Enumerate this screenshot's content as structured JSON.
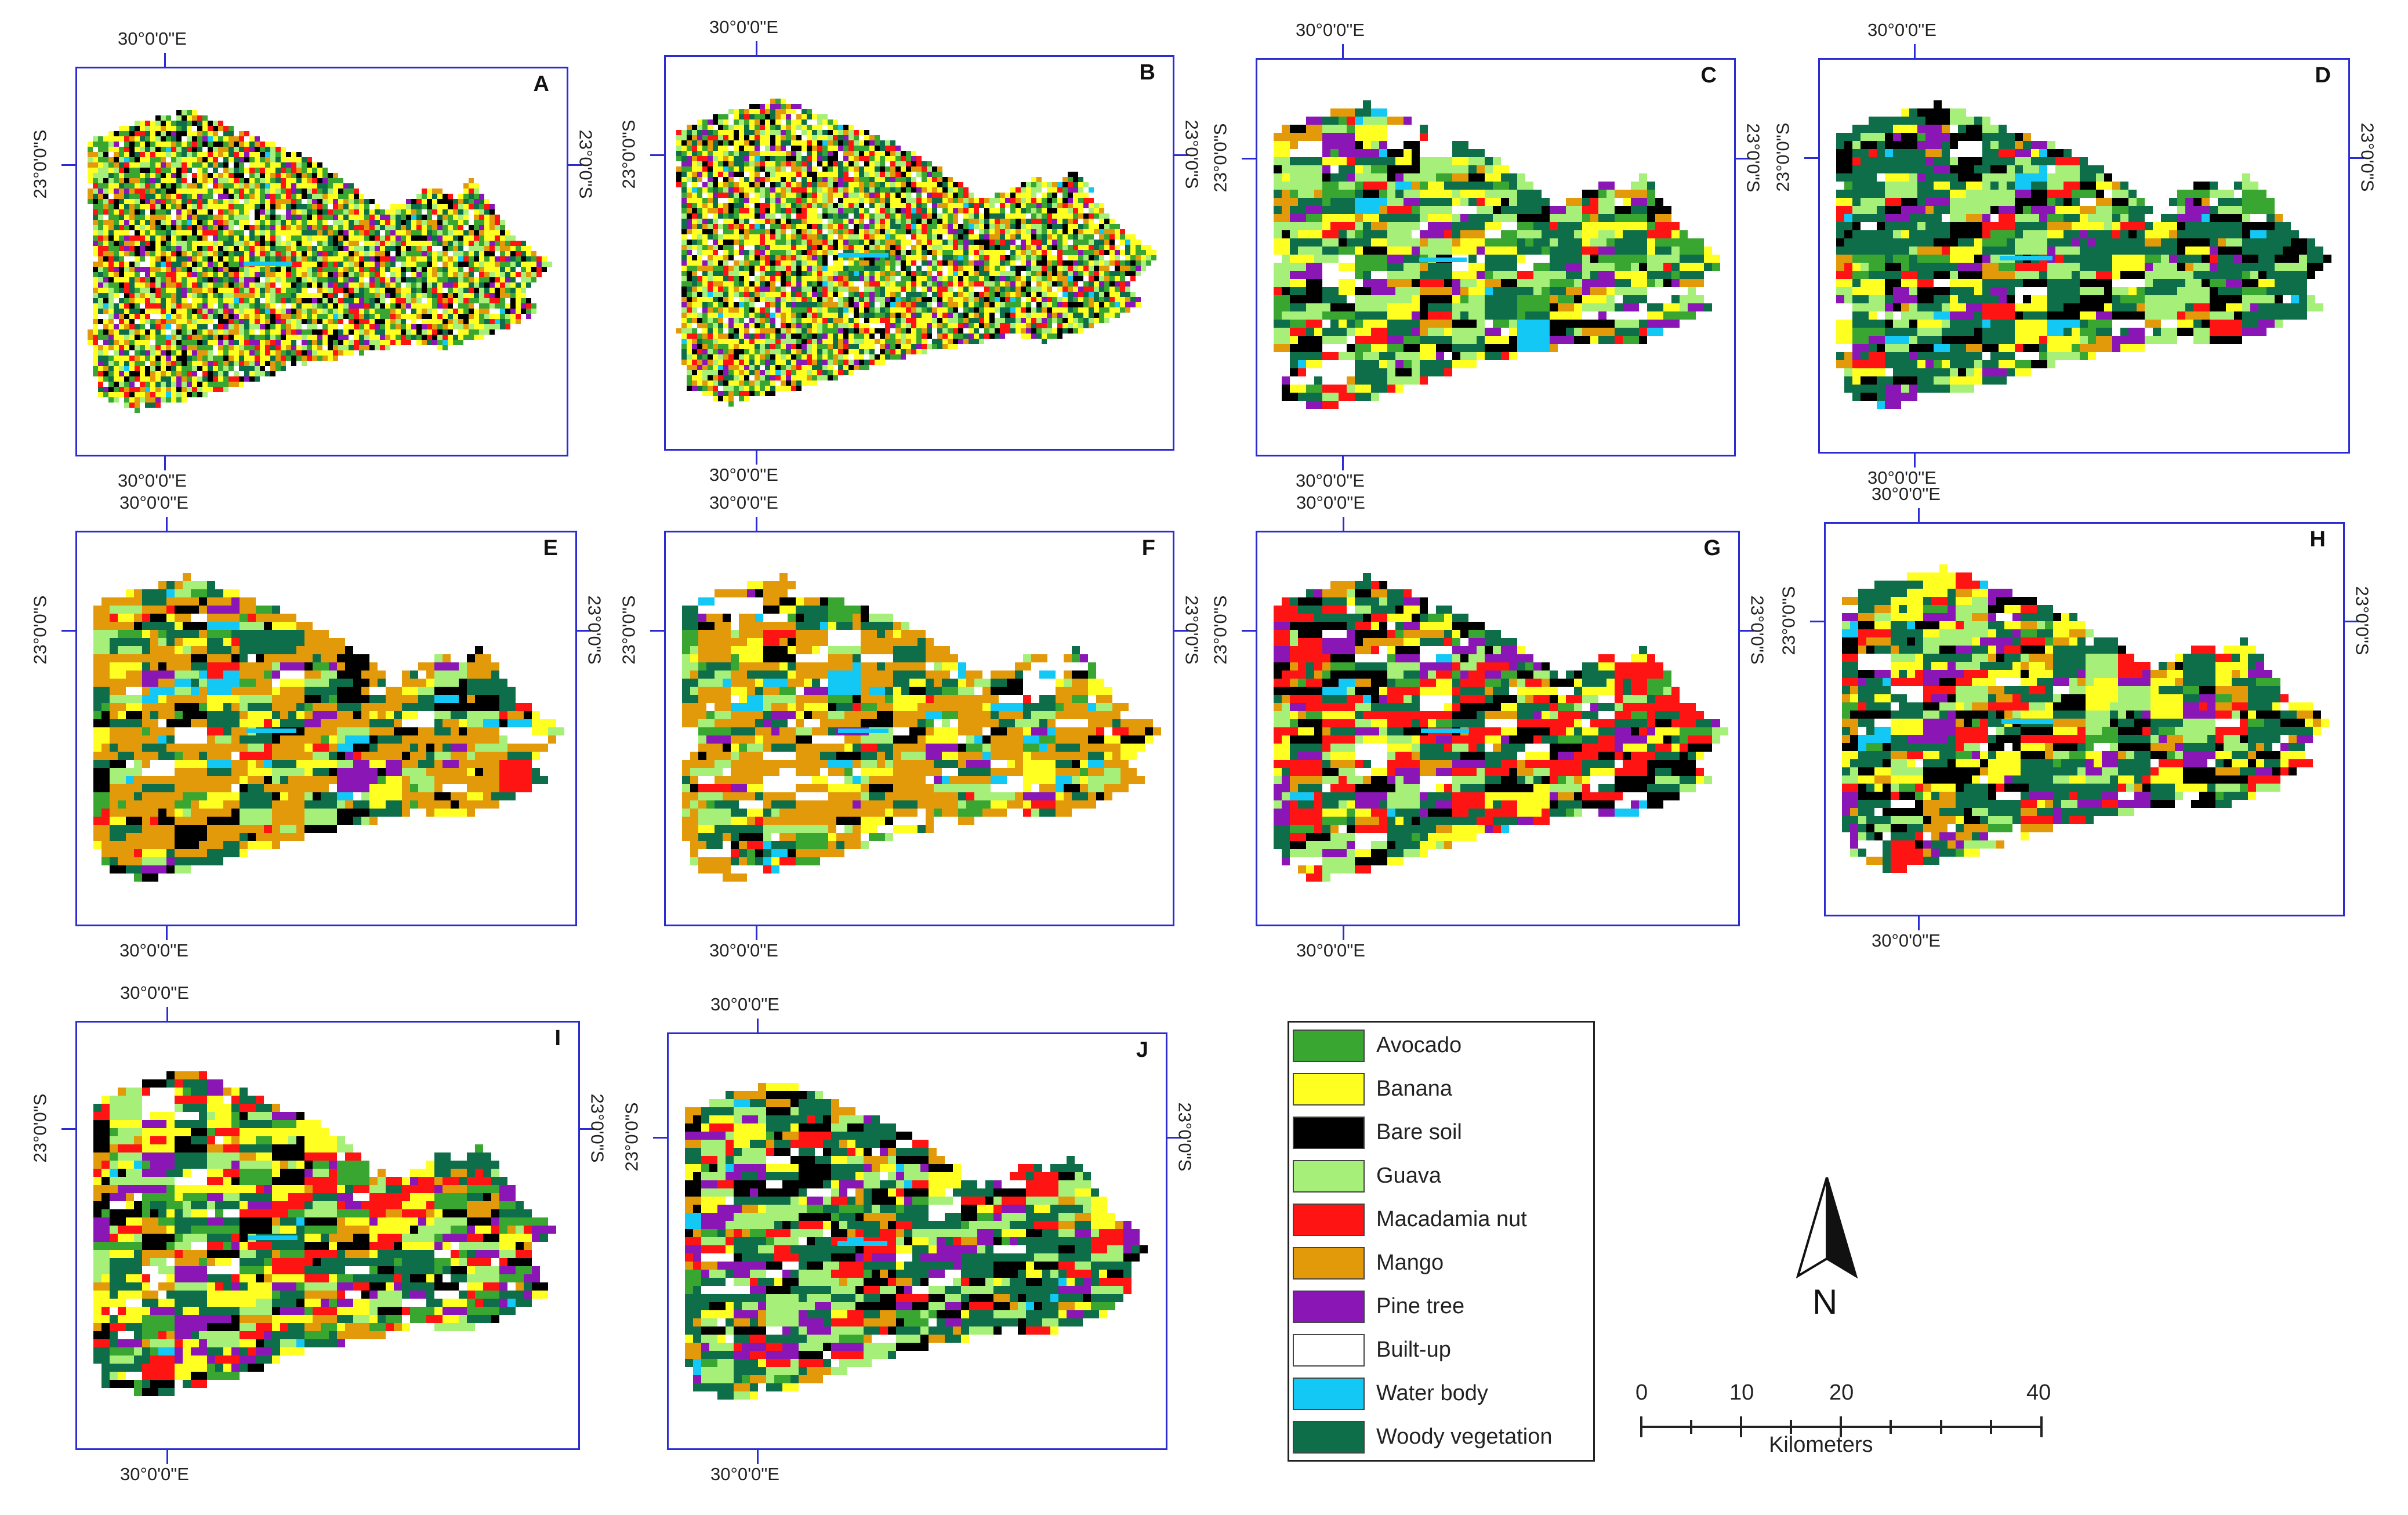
{
  "legend": {
    "items": [
      {
        "label": "Avocado",
        "color": "#3aa632"
      },
      {
        "label": "Banana",
        "color": "#ffff22"
      },
      {
        "label": "Bare soil",
        "color": "#000000"
      },
      {
        "label": "Guava",
        "color": "#a6f07a"
      },
      {
        "label": "Macadamia nut",
        "color": "#ff1414"
      },
      {
        "label": "Mango",
        "color": "#e39a0a"
      },
      {
        "label": "Pine tree",
        "color": "#8a16b5"
      },
      {
        "label": "Built-up",
        "color": "#ffffff"
      },
      {
        "label": "Water body",
        "color": "#14c8f5"
      },
      {
        "label": "Woody vegetation",
        "color": "#0f6e4a"
      }
    ]
  },
  "coords": {
    "lon": "30°0'0\"E",
    "lat": "23°0'0\"S"
  },
  "north_label": "N",
  "scale": {
    "ticks": [
      "0",
      "10",
      "20",
      "40"
    ],
    "unit": "Kilometers"
  },
  "panels": [
    {
      "letter": "A"
    },
    {
      "letter": "B"
    },
    {
      "letter": "C"
    },
    {
      "letter": "D"
    },
    {
      "letter": "E"
    },
    {
      "letter": "F"
    },
    {
      "letter": "G"
    },
    {
      "letter": "H"
    },
    {
      "letter": "I"
    },
    {
      "letter": "J"
    }
  ]
}
